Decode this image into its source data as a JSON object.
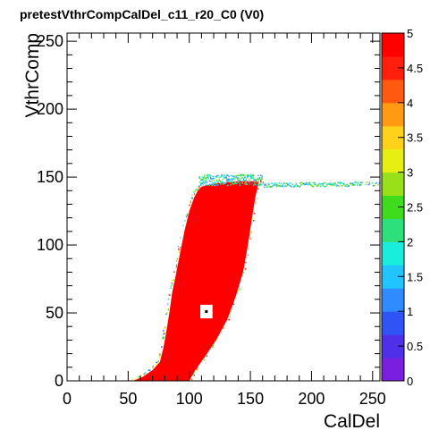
{
  "chart_data": {
    "type": "heatmap",
    "title": "pretestVthrCompCalDel_c11_r20_C0 (V0)",
    "xlabel": "CalDel",
    "ylabel": "VthrComp",
    "xlim": [
      0,
      256
    ],
    "ylim": [
      0,
      256
    ],
    "zlim": [
      0,
      5
    ],
    "x_ticks": [
      0,
      50,
      100,
      150,
      200,
      250
    ],
    "y_ticks": [
      0,
      50,
      100,
      150,
      200,
      250
    ],
    "z_ticks": [
      "0",
      "0.5",
      "1",
      "1.5",
      "2",
      "2.5",
      "3",
      "3.5",
      "4",
      "4.5",
      "5"
    ],
    "palette": "ROOT rainbow (violet low to red high)",
    "main_region": {
      "z": 5,
      "left_edge": [
        [
          54,
          0
        ],
        [
          62,
          3
        ],
        [
          70,
          8
        ],
        [
          76,
          14
        ],
        [
          79,
          25
        ],
        [
          81,
          35
        ],
        [
          84,
          52
        ],
        [
          86,
          65
        ],
        [
          89,
          78
        ],
        [
          92,
          92
        ],
        [
          96,
          110
        ],
        [
          100,
          125
        ],
        [
          104,
          135
        ],
        [
          107,
          140
        ],
        [
          110,
          143
        ]
      ],
      "top_edge": [
        [
          110,
          143
        ],
        [
          120,
          145
        ],
        [
          130,
          146
        ],
        [
          140,
          147
        ],
        [
          150,
          147
        ],
        [
          157,
          147
        ]
      ],
      "right_edge": [
        [
          157,
          147
        ],
        [
          154,
          135
        ],
        [
          151,
          118
        ],
        [
          148,
          100
        ],
        [
          144,
          80
        ],
        [
          138,
          62
        ],
        [
          131,
          45
        ],
        [
          122,
          30
        ],
        [
          113,
          18
        ],
        [
          105,
          8
        ],
        [
          100,
          0
        ]
      ]
    },
    "plateau": {
      "x_start": 108,
      "x_end": 256,
      "y": 147,
      "z_range": [
        1,
        3
      ]
    },
    "empty_bin": {
      "x": 114,
      "y": 51
    }
  }
}
